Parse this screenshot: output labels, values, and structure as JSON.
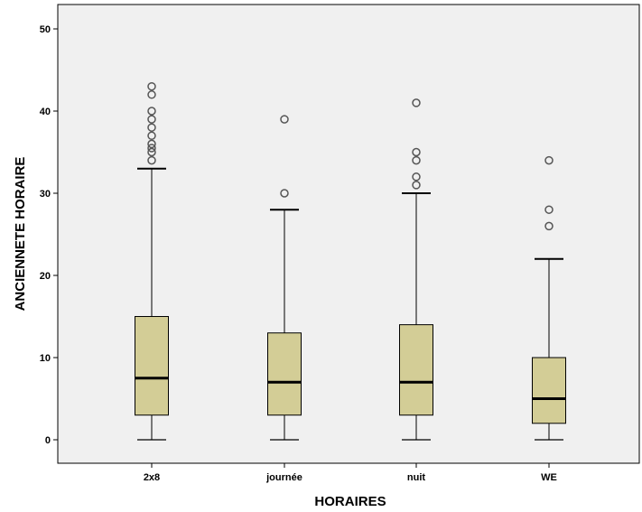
{
  "chart_data": {
    "type": "boxplot",
    "xlabel": "HORAIRES",
    "ylabel": "ANCIENNETE HORAIRE",
    "ylim": [
      0,
      50
    ],
    "yticks": [
      0,
      10,
      20,
      30,
      40,
      50
    ],
    "grid": false,
    "colors": {
      "plot_background": "#f0f0f0",
      "box_fill": "#d3cd96",
      "stroke": "#000000",
      "outlier": "#555555"
    },
    "categories": [
      "2x8",
      "journée",
      "nuit",
      "WE"
    ],
    "boxes": [
      {
        "category": "2x8",
        "min": 0,
        "q1": 3,
        "median": 7.5,
        "q3": 15,
        "max": 33,
        "outliers": [
          34,
          35,
          35.5,
          36,
          37,
          38,
          39,
          40,
          42,
          43
        ]
      },
      {
        "category": "journée",
        "min": 0,
        "q1": 3,
        "median": 7,
        "q3": 13,
        "max": 28,
        "outliers": [
          30,
          39
        ]
      },
      {
        "category": "nuit",
        "min": 0,
        "q1": 3,
        "median": 7,
        "q3": 14,
        "max": 30,
        "outliers": [
          31,
          32,
          34,
          35,
          41
        ]
      },
      {
        "category": "WE",
        "min": 0,
        "q1": 2,
        "median": 5,
        "q3": 10,
        "max": 22,
        "outliers": [
          26,
          28,
          34
        ]
      }
    ]
  }
}
